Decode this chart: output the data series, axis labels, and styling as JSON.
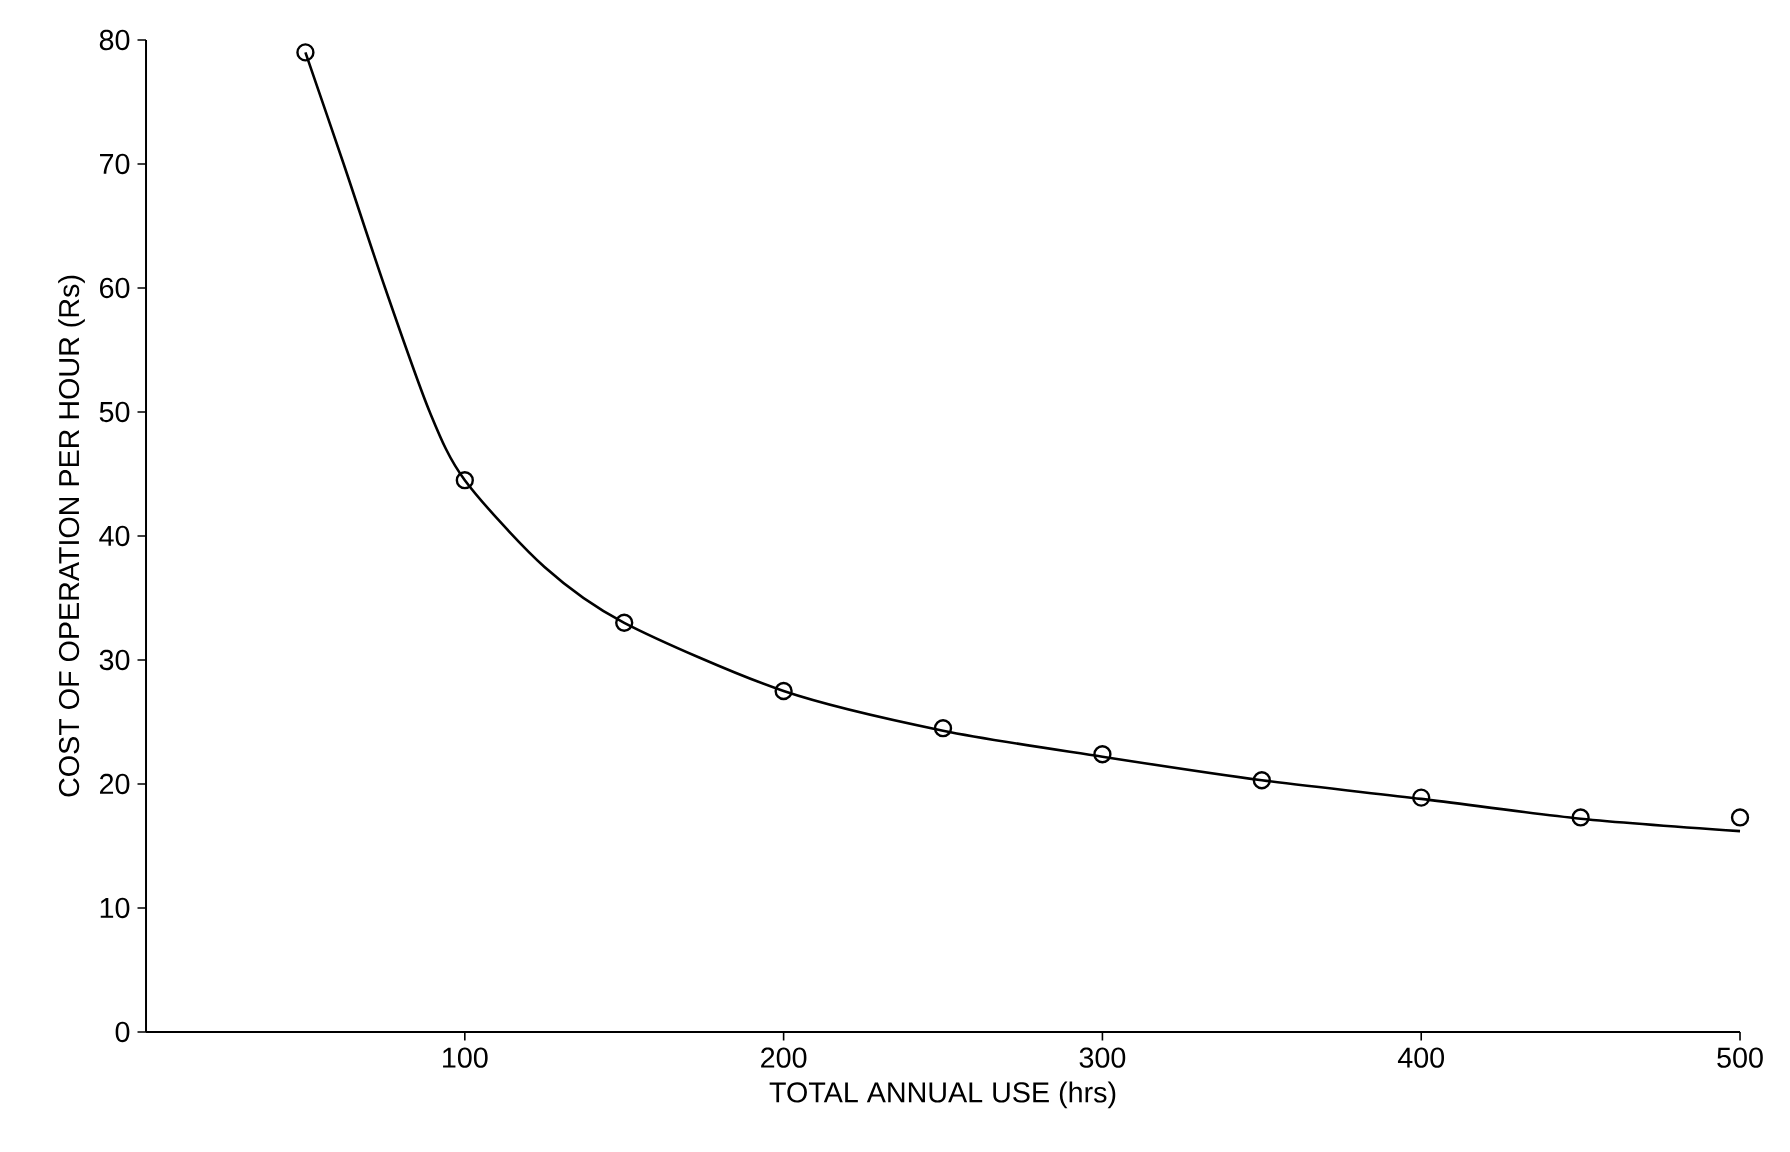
{
  "chart_data": {
    "type": "line",
    "xlabel": "TOTAL ANNUAL USE (hrs)",
    "ylabel": "COST OF OPERATION PER HOUR (Rs)",
    "xlim": [
      0,
      500
    ],
    "ylim": [
      0,
      80
    ],
    "xticks": [
      100,
      200,
      300,
      400,
      500
    ],
    "yticks": [
      0,
      10,
      20,
      30,
      40,
      50,
      60,
      70,
      80
    ],
    "grid": false,
    "series": [
      {
        "color": "#000000",
        "marker": "none",
        "line_style": "solid",
        "x": [
          50,
          62,
          75,
          89,
          100,
          125,
          150,
          200,
          250,
          300,
          350,
          400,
          450,
          500
        ],
        "values": [
          79,
          70,
          60,
          50,
          44.5,
          37.5,
          33,
          27.5,
          24.3,
          22.2,
          20.3,
          18.8,
          17.2,
          16.2
        ]
      },
      {
        "type": "scatter",
        "color": "#000000",
        "marker": "circle",
        "x": [
          50,
          100,
          150,
          200,
          250,
          300,
          350,
          400,
          450,
          500
        ],
        "values": [
          79,
          44.5,
          33,
          27.5,
          24.5,
          22.4,
          20.3,
          18.9,
          17.3,
          17.3
        ]
      }
    ]
  }
}
